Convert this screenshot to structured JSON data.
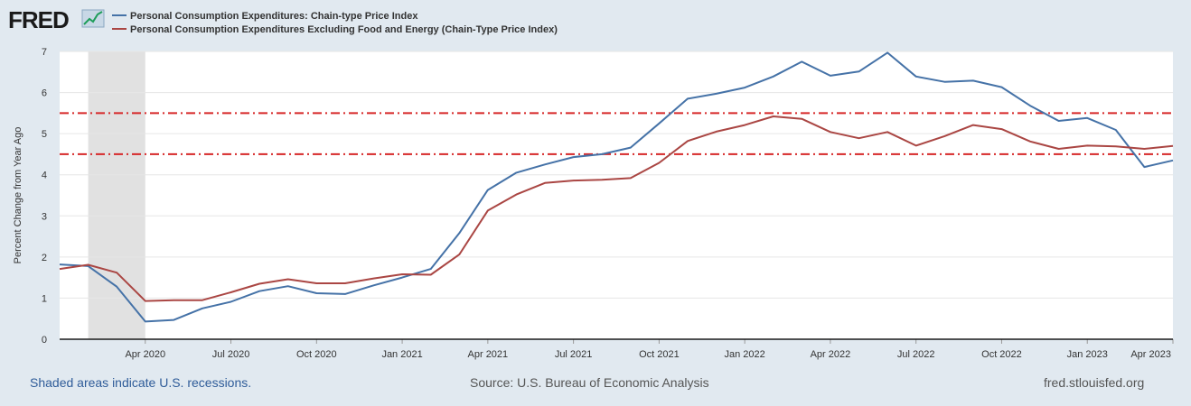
{
  "brand": {
    "name": "FRED"
  },
  "chart_data": {
    "type": "line",
    "title": "",
    "ylabel": "Percent Change from Year Ago",
    "xlabel": "",
    "ylim": [
      0,
      7
    ],
    "yticks": [
      0,
      1,
      2,
      3,
      4,
      5,
      6,
      7
    ],
    "x_start": "Jan 2020",
    "x_range_months": [
      0,
      39
    ],
    "xticks": [
      {
        "m": 3,
        "label": "Apr 2020"
      },
      {
        "m": 6,
        "label": "Jul 2020"
      },
      {
        "m": 9,
        "label": "Oct 2020"
      },
      {
        "m": 12,
        "label": "Jan 2021"
      },
      {
        "m": 15,
        "label": "Apr 2021"
      },
      {
        "m": 18,
        "label": "Jul 2021"
      },
      {
        "m": 21,
        "label": "Oct 2021"
      },
      {
        "m": 24,
        "label": "Jan 2022"
      },
      {
        "m": 27,
        "label": "Apr 2022"
      },
      {
        "m": 30,
        "label": "Jul 2022"
      },
      {
        "m": 33,
        "label": "Oct 2022"
      },
      {
        "m": 36,
        "label": "Jan 2023"
      },
      {
        "m": 39,
        "label": "Apr 2023"
      }
    ],
    "recession": {
      "from_m": 1,
      "to_m": 3
    },
    "reference_lines": [
      {
        "y": 5.5,
        "color": "#d62728",
        "style": "dash-dot"
      },
      {
        "y": 4.5,
        "color": "#d62728",
        "style": "dash-dot"
      }
    ],
    "series": [
      {
        "name": "Personal Consumption Expenditures: Chain-type Price Index",
        "color": "#4572a7",
        "values": [
          1.82,
          1.78,
          1.28,
          0.43,
          0.47,
          0.75,
          0.91,
          1.17,
          1.29,
          1.12,
          1.1,
          1.31,
          1.5,
          1.71,
          2.58,
          3.63,
          4.05,
          4.25,
          4.43,
          4.5,
          4.66,
          5.25,
          5.85,
          5.97,
          6.12,
          6.39,
          6.75,
          6.41,
          6.51,
          6.97,
          6.39,
          6.26,
          6.29,
          6.13,
          5.68,
          5.31,
          5.38,
          5.09,
          4.19,
          4.35
        ]
      },
      {
        "name": "Personal Consumption Expenditures Excluding Food and Energy (Chain-Type Price Index)",
        "color": "#aa4643",
        "values": [
          1.71,
          1.81,
          1.62,
          0.93,
          0.95,
          0.95,
          1.14,
          1.35,
          1.46,
          1.36,
          1.36,
          1.48,
          1.58,
          1.57,
          2.06,
          3.13,
          3.52,
          3.8,
          3.86,
          3.88,
          3.92,
          4.29,
          4.82,
          5.05,
          5.21,
          5.42,
          5.36,
          5.04,
          4.89,
          5.04,
          4.71,
          4.94,
          5.21,
          5.11,
          4.81,
          4.63,
          4.71,
          4.69,
          4.63,
          4.7
        ]
      }
    ]
  },
  "footer": {
    "left": "Shaded areas indicate U.S. recessions.",
    "center": "Source: U.S. Bureau of Economic Analysis",
    "right": "fred.stlouisfed.org"
  }
}
